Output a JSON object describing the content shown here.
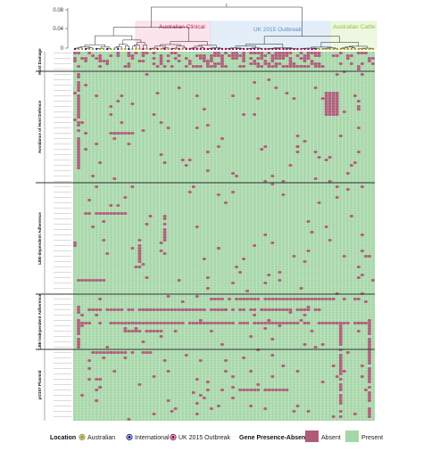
{
  "tree": {
    "axis_ticks": [
      "0.08",
      "0.04",
      "0"
    ],
    "clades": [
      {
        "label": "Australian Clinical",
        "color": "#c2185b",
        "fill": "#fce4ec"
      },
      {
        "label": "UK 2015 Outbreak",
        "color": "#5b8fc7",
        "fill": "#e3eef9"
      },
      {
        "label": "Australian Cattle",
        "color": "#8bc34a",
        "fill": "#eef7e0"
      }
    ]
  },
  "categories": [
    {
      "label": "Host Damage"
    },
    {
      "label": "Avoidance of Host Defence"
    },
    {
      "label": "LEE-dependent Adherence"
    },
    {
      "label": "LEE-independent Adherence"
    },
    {
      "label": "pO157 Plasmid"
    }
  ],
  "legend": {
    "location_title": "Location",
    "locations": [
      {
        "label": "Australian",
        "color": "#9e9d24"
      },
      {
        "label": "International",
        "color": "#1a237e"
      },
      {
        "label": "UK 2015 Outbreak",
        "color": "#880e4f"
      }
    ],
    "gene_title": "Gene Presence-Absence",
    "gene_states": [
      {
        "label": "Absent",
        "color": "#b05a7a"
      },
      {
        "label": "Present",
        "color": "#a5d6a7"
      }
    ]
  },
  "colors": {
    "present": "#a5d6a7",
    "absent": "#b05a7a",
    "grid": "#e8f5e9",
    "tree_line": "#222222"
  }
}
